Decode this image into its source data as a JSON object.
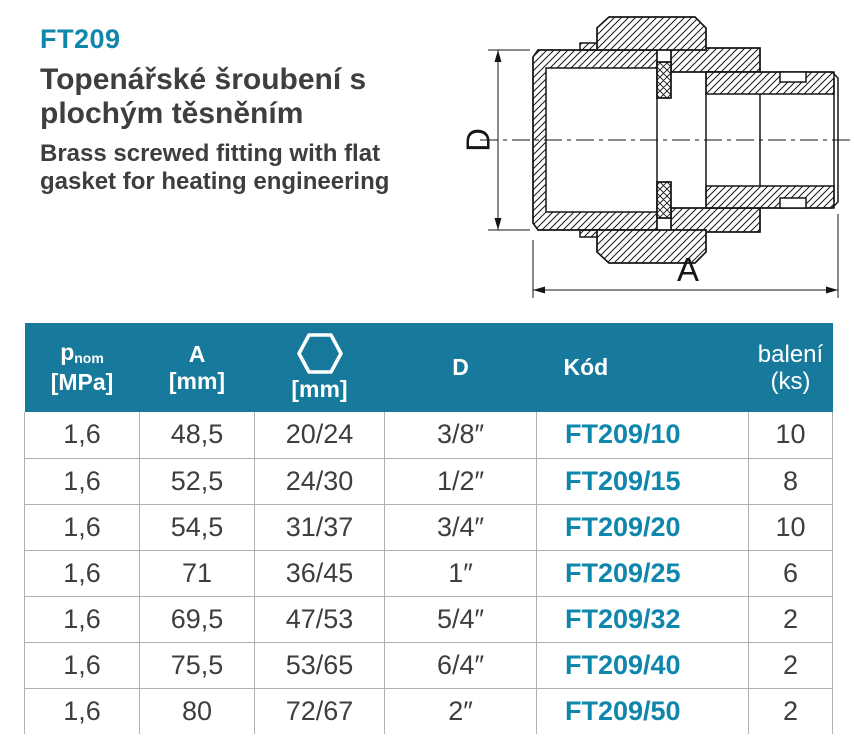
{
  "colors": {
    "accent": "#0f86ab",
    "header_bg": "#17799c",
    "text_dark": "#3e3e3d",
    "grid_line": "#b0b0b0",
    "drawing_line": "#161616"
  },
  "header": {
    "code": "FT209",
    "title_cs_line1": "Topenářské šroubení s",
    "title_cs_line2": "plochým těsněním",
    "subtitle_en_line1": "Brass screwed fitting with flat",
    "subtitle_en_line2": "gasket for heating engineering"
  },
  "drawing": {
    "dim_vertical_label": "D",
    "dim_horizontal_label": "A"
  },
  "table": {
    "columns": [
      {
        "id": "pnom",
        "label_main": "p",
        "label_sub": "nom",
        "label_unit": "[MPa]"
      },
      {
        "id": "a",
        "label_main": "A",
        "label_unit": "[mm]"
      },
      {
        "id": "hex",
        "icon": "hex-nut-icon",
        "label_unit": "[mm]"
      },
      {
        "id": "d",
        "label_main": "D"
      },
      {
        "id": "kod",
        "label_main": "Kód"
      },
      {
        "id": "baleni",
        "label_main": "balení",
        "label_unit": "(ks)"
      }
    ],
    "rows": [
      {
        "pnom": "1,6",
        "a": "48,5",
        "hex": "20/24",
        "d": "3/8″",
        "kod": "FT209/10",
        "baleni": "10"
      },
      {
        "pnom": "1,6",
        "a": "52,5",
        "hex": "24/30",
        "d": "1/2″",
        "kod": "FT209/15",
        "baleni": "8"
      },
      {
        "pnom": "1,6",
        "a": "54,5",
        "hex": "31/37",
        "d": "3/4″",
        "kod": "FT209/20",
        "baleni": "10"
      },
      {
        "pnom": "1,6",
        "a": "71",
        "hex": "36/45",
        "d": "1″",
        "kod": "FT209/25",
        "baleni": "6"
      },
      {
        "pnom": "1,6",
        "a": "69,5",
        "hex": "47/53",
        "d": "5/4″",
        "kod": "FT209/32",
        "baleni": "2"
      },
      {
        "pnom": "1,6",
        "a": "75,5",
        "hex": "53/65",
        "d": "6/4″",
        "kod": "FT209/40",
        "baleni": "2"
      },
      {
        "pnom": "1,6",
        "a": "80",
        "hex": "72/67",
        "d": "2″",
        "kod": "FT209/50",
        "baleni": "2"
      }
    ]
  }
}
